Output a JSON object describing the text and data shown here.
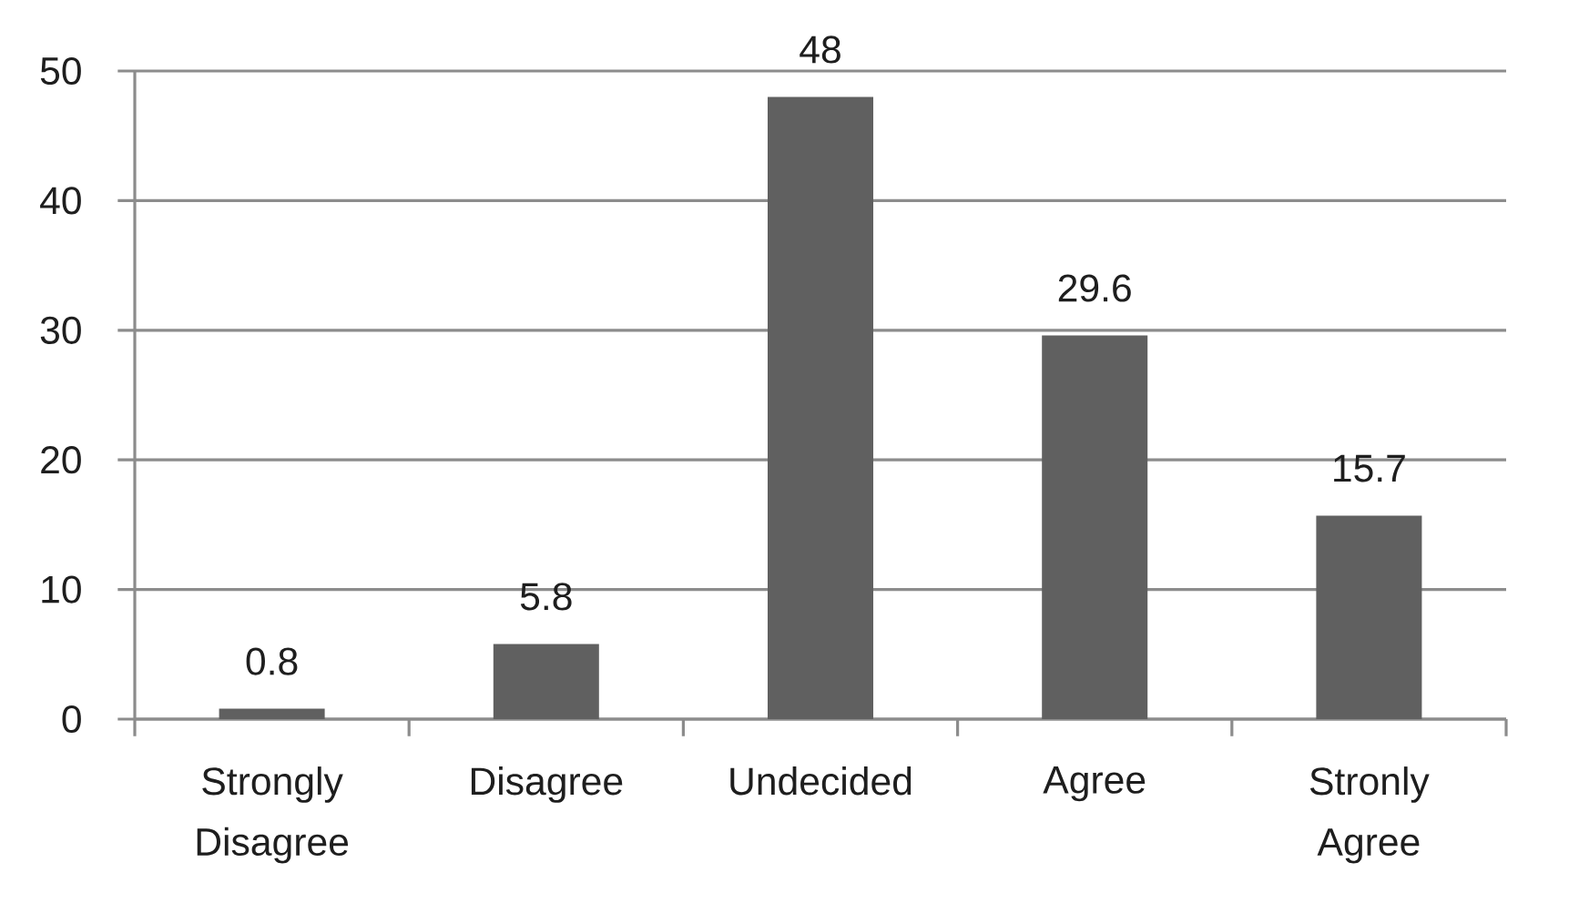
{
  "chart_data": {
    "type": "bar",
    "categories": [
      "Strongly Disagree",
      "Disagree",
      "Undecided",
      "Agree",
      "Stronly Agree"
    ],
    "values": [
      0.8,
      5.8,
      48,
      29.6,
      15.7
    ],
    "color": "#606060",
    "ylim": [
      0,
      50
    ],
    "yticks": [
      0,
      10,
      20,
      30,
      40,
      50
    ],
    "grid": "y",
    "data_labels": true
  }
}
